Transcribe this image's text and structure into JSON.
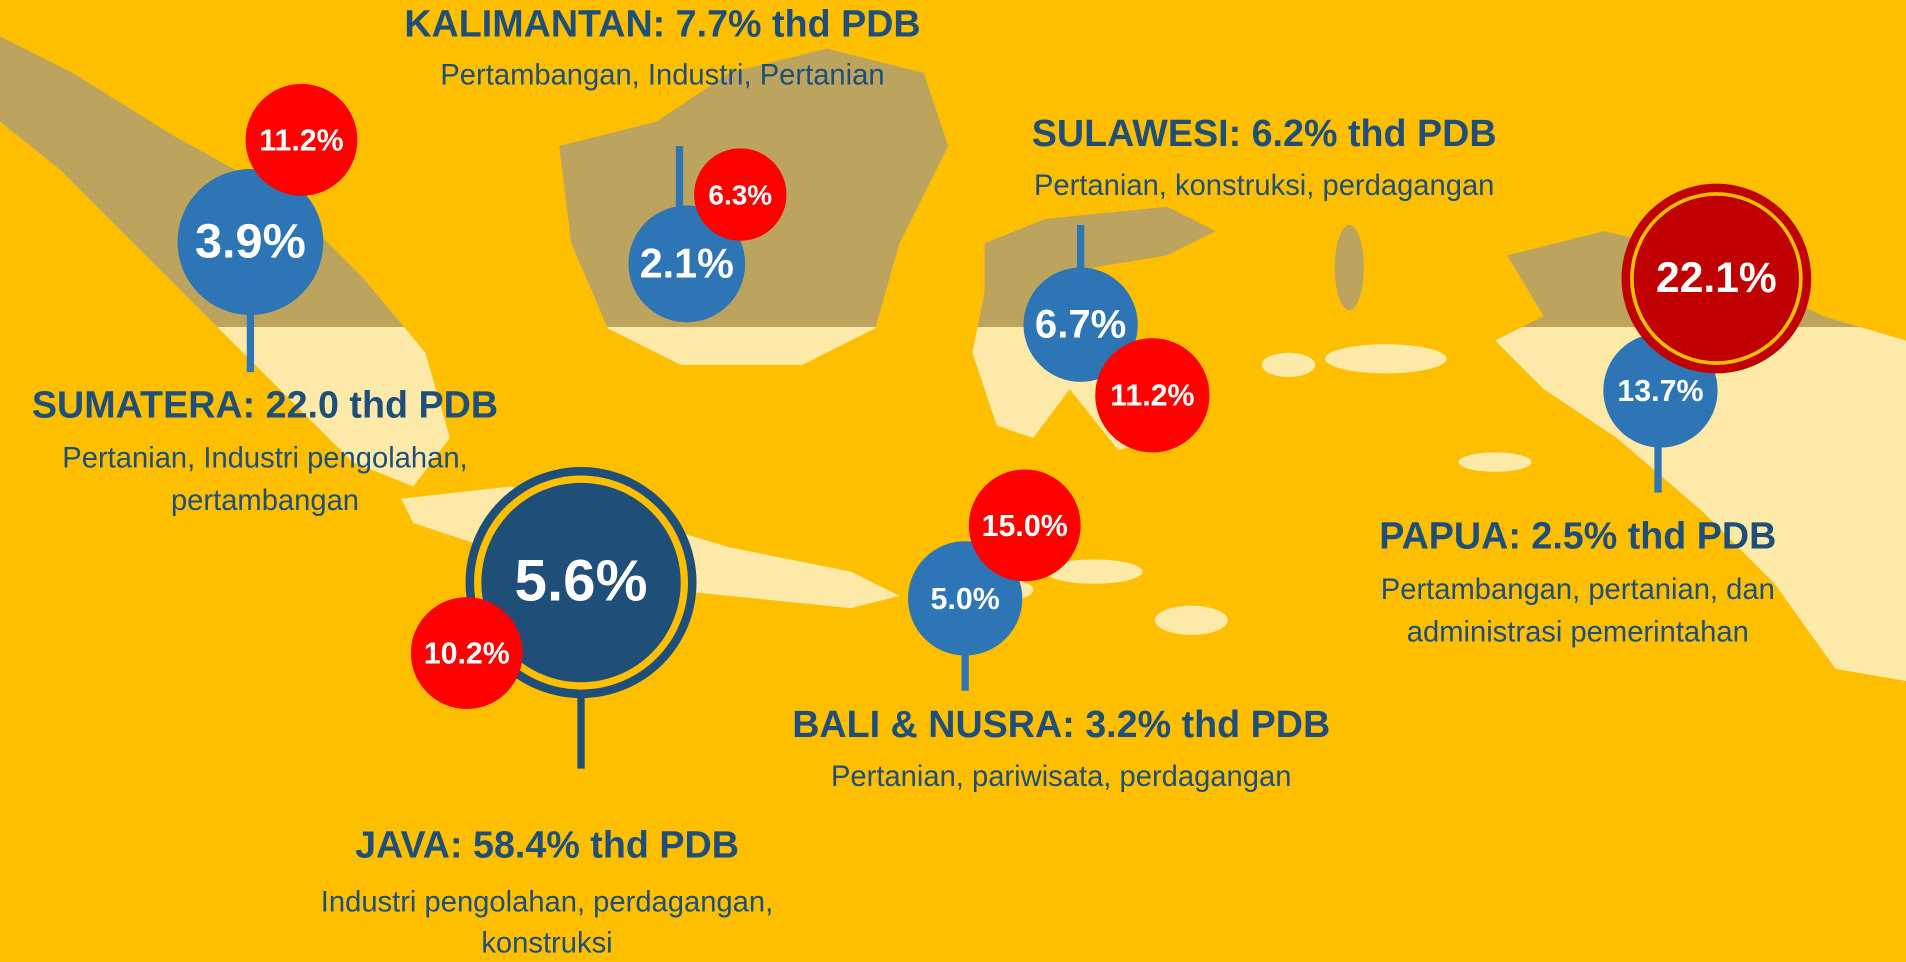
{
  "regions": [
    {
      "title": "SUMATERA: 22.0 thd PDB",
      "sectors": [
        "Pertanian, Industri pengolahan,",
        "pertambangan"
      ],
      "share": "3.9%",
      "highlight": "11.2%"
    },
    {
      "title": "KALIMANTAN: 7.7% thd PDB",
      "sectors": [
        "Pertambangan, Industri, Pertanian"
      ],
      "share": "2.1%",
      "highlight": "6.3%"
    },
    {
      "title": "SULAWESI: 6.2% thd PDB",
      "sectors": [
        "Pertanian, konstruksi, perdagangan"
      ],
      "share": "6.7%",
      "highlight": "11.2%"
    },
    {
      "title": "PAPUA: 2.5% thd PDB",
      "sectors": [
        "Pertambangan, pertanian, dan",
        "administrasi pemerintahan"
      ],
      "share": "13.7%",
      "highlight": "22.1%"
    },
    {
      "title": "JAVA: 58.4% thd PDB",
      "sectors": [
        "Industri pengolahan, perdagangan,",
        "konstruksi"
      ],
      "share": "5.6%",
      "highlight": "10.2%"
    },
    {
      "title": "BALI & NUSRA: 3.2% thd PDB",
      "sectors": [
        "Pertanian, pariwisata, perdagangan"
      ],
      "share": "5.0%",
      "highlight": "15.0%"
    }
  ]
}
